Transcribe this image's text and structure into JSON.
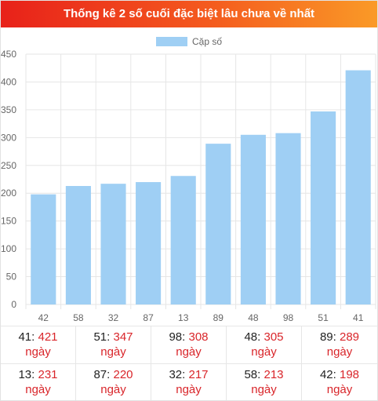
{
  "header": {
    "title": "Thống kê 2 số cuối đặc biệt lâu chưa về nhất"
  },
  "colors": {
    "bar": "#9fcff4",
    "accent": "#d9252a",
    "header_start": "#e8211a",
    "header_end": "#fa9a27"
  },
  "chart_data": {
    "type": "bar",
    "categories": [
      "42",
      "58",
      "32",
      "87",
      "13",
      "89",
      "48",
      "98",
      "51",
      "41"
    ],
    "series": [
      {
        "name": "Cặp số",
        "values": [
          198,
          213,
          217,
          220,
          231,
          289,
          305,
          308,
          347,
          421
        ]
      }
    ],
    "ylim": [
      0,
      450
    ],
    "yticks": [
      0,
      50,
      100,
      150,
      200,
      250,
      300,
      350,
      400,
      450
    ],
    "grid": true,
    "legend": "top-center"
  },
  "stats": [
    {
      "number": "41",
      "days": "421",
      "unit": "ngày"
    },
    {
      "number": "51",
      "days": "347",
      "unit": "ngày"
    },
    {
      "number": "98",
      "days": "308",
      "unit": "ngày"
    },
    {
      "number": "48",
      "days": "305",
      "unit": "ngày"
    },
    {
      "number": "89",
      "days": "289",
      "unit": "ngày"
    },
    {
      "number": "13",
      "days": "231",
      "unit": "ngày"
    },
    {
      "number": "87",
      "days": "220",
      "unit": "ngày"
    },
    {
      "number": "32",
      "days": "217",
      "unit": "ngày"
    },
    {
      "number": "58",
      "days": "213",
      "unit": "ngày"
    },
    {
      "number": "42",
      "days": "198",
      "unit": "ngày"
    }
  ]
}
